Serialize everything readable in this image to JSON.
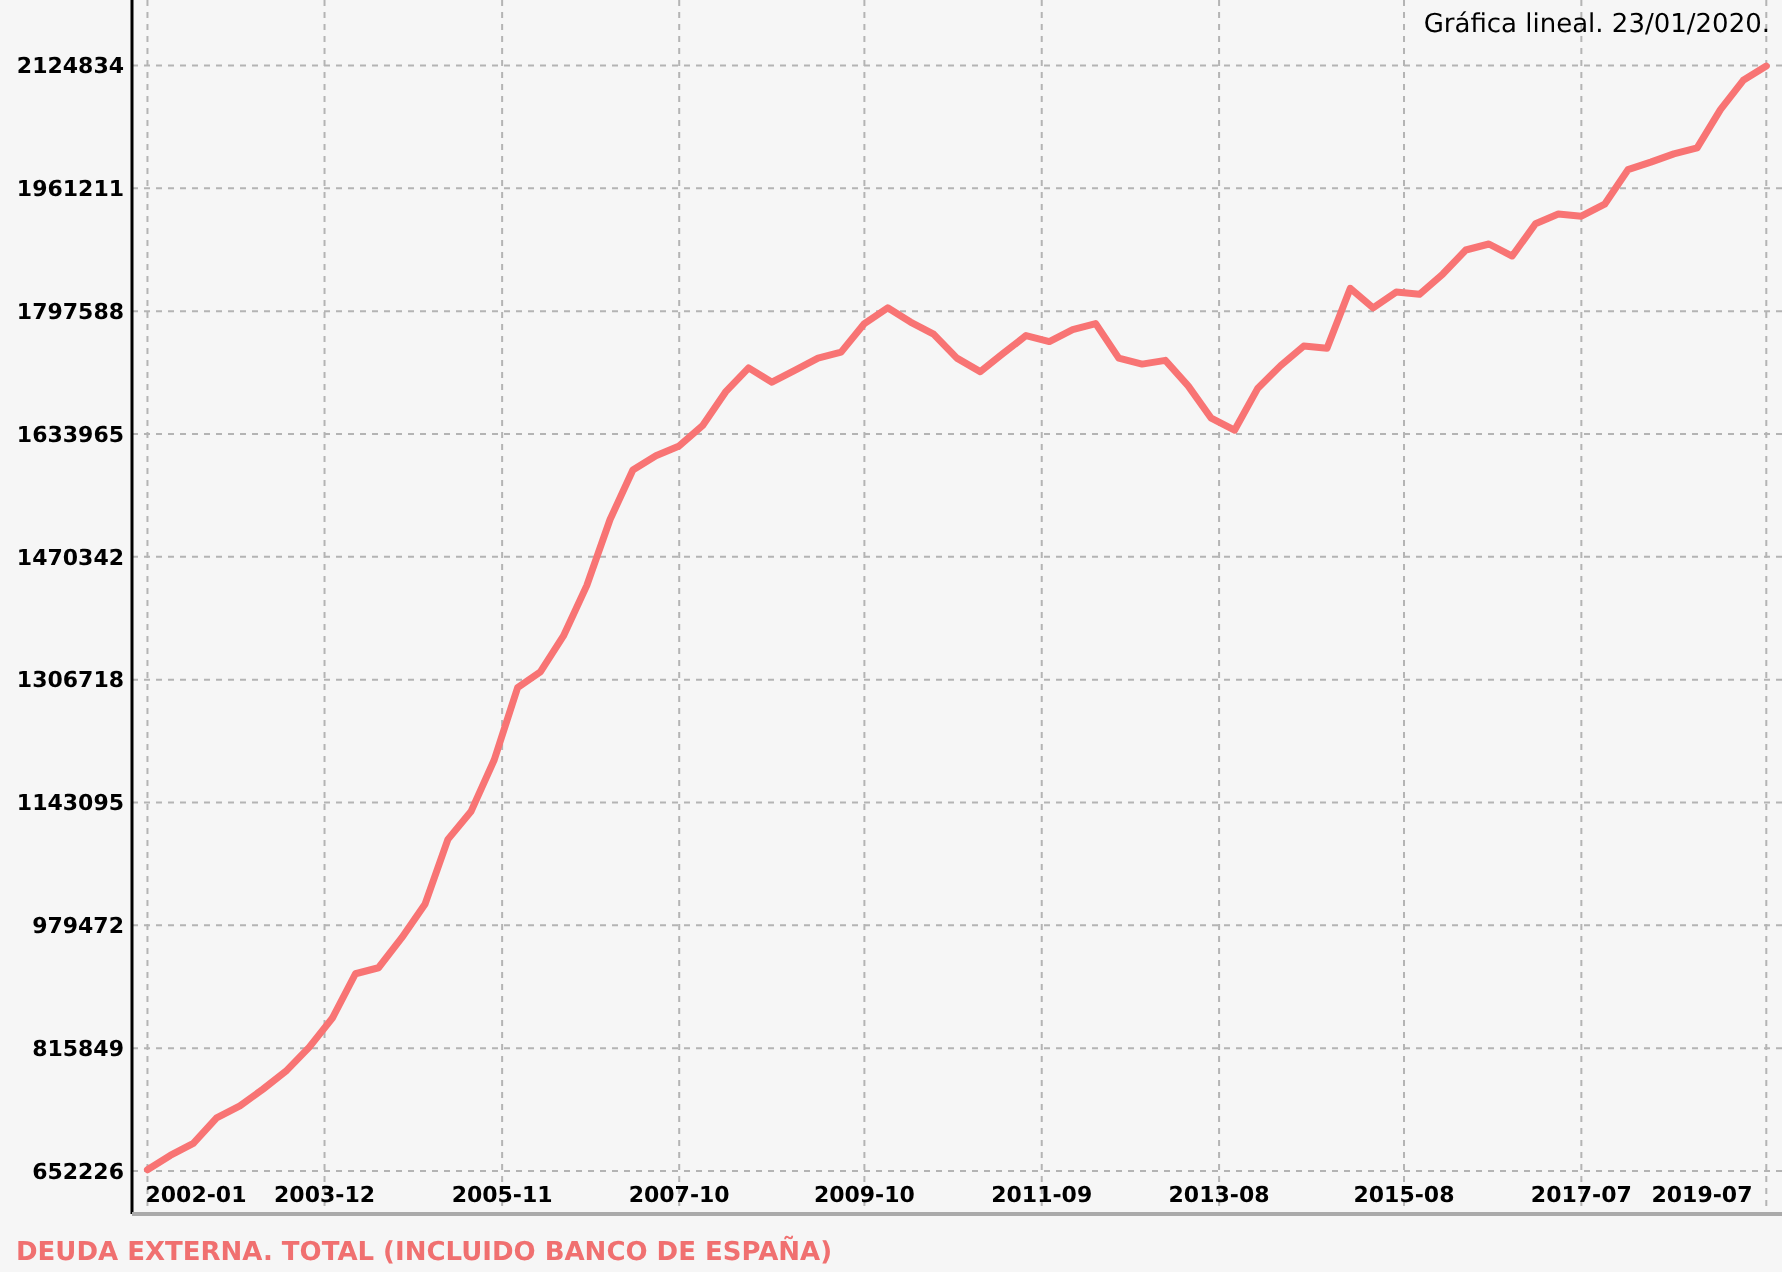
{
  "chart_data": {
    "type": "line",
    "title": "DEUDA EXTERNA. TOTAL (INCLUIDO BANCO DE ESPAÑA)",
    "annotations": [
      "Gráfica lineal. 23/01/2020."
    ],
    "x": [
      "2002-01",
      "2002-04",
      "2002-07",
      "2002-10",
      "2003-01",
      "2003-04",
      "2003-07",
      "2003-10",
      "2004-01",
      "2004-04",
      "2004-07",
      "2004-10",
      "2005-01",
      "2005-04",
      "2005-07",
      "2005-10",
      "2006-01",
      "2006-04",
      "2006-07",
      "2006-10",
      "2007-01",
      "2007-04",
      "2007-07",
      "2007-10",
      "2008-01",
      "2008-04",
      "2008-07",
      "2008-10",
      "2009-01",
      "2009-04",
      "2009-07",
      "2009-10",
      "2010-01",
      "2010-04",
      "2010-07",
      "2010-10",
      "2011-01",
      "2011-04",
      "2011-07",
      "2011-10",
      "2012-01",
      "2012-04",
      "2012-07",
      "2012-10",
      "2013-01",
      "2013-04",
      "2013-07",
      "2013-10",
      "2014-01",
      "2014-04",
      "2014-07",
      "2014-10",
      "2015-01",
      "2015-04",
      "2015-07",
      "2015-10",
      "2016-01",
      "2016-04",
      "2016-07",
      "2016-10",
      "2017-01",
      "2017-04",
      "2017-07",
      "2017-10",
      "2018-01",
      "2018-04",
      "2018-07",
      "2018-10",
      "2019-01",
      "2019-04",
      "2019-07"
    ],
    "series": [
      {
        "color": "#f87474",
        "values": [
          654000,
          673000,
          689000,
          723000,
          739000,
          761000,
          785000,
          817000,
          856000,
          915000,
          923000,
          963000,
          1008000,
          1094000,
          1131000,
          1200000,
          1296000,
          1317000,
          1365000,
          1432000,
          1520000,
          1586000,
          1605000,
          1618000,
          1645000,
          1690000,
          1722000,
          1703000,
          1719000,
          1735000,
          1743000,
          1781000,
          1802000,
          1783000,
          1767000,
          1735000,
          1717000,
          1741000,
          1765000,
          1757000,
          1773000,
          1781000,
          1735000,
          1727000,
          1732000,
          1698000,
          1655000,
          1639000,
          1695000,
          1725000,
          1751000,
          1748000,
          1828000,
          1802000,
          1823000,
          1820000,
          1847000,
          1879000,
          1887000,
          1871000,
          1914000,
          1927000,
          1924000,
          1940000,
          1986000,
          1996000,
          2007000,
          2015000,
          2066000,
          2105000,
          2124000
        ]
      }
    ],
    "xlim": [
      "2001-11",
      "2019-09"
    ],
    "xticks": [
      "2002-01",
      "2003-12",
      "2005-11",
      "2007-10",
      "2009-10",
      "2011-09",
      "2013-08",
      "2015-08",
      "2017-07",
      "2019-07"
    ],
    "ylim": [
      595000,
      2212000
    ],
    "yticks": [
      652226,
      815849,
      979472,
      1143095,
      1306718,
      1470342,
      1633965,
      1797588,
      1961211,
      2124834
    ],
    "grid": true,
    "line_style": "solid",
    "marker": "none"
  }
}
